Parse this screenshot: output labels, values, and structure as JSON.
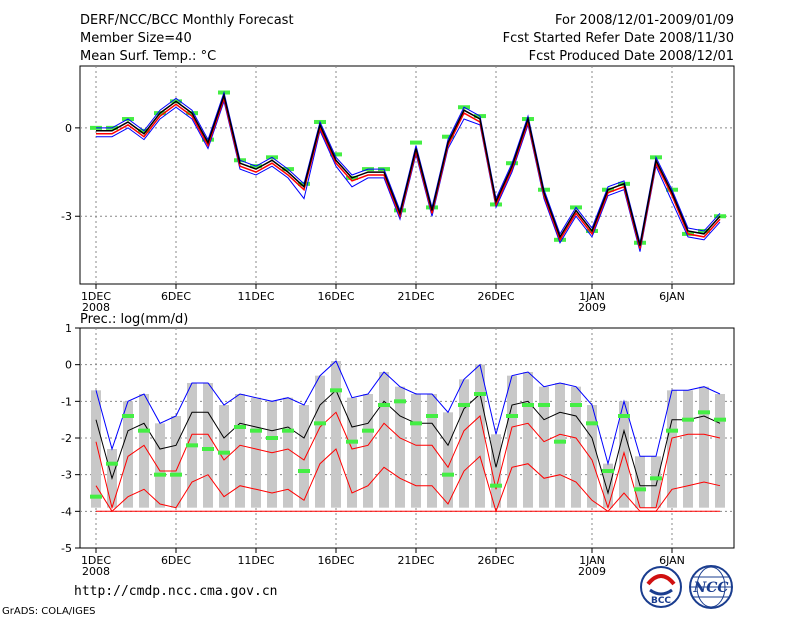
{
  "header": {
    "title": "DERF/NCC/BCC Monthly Forecast",
    "member_size": "Member Size=40",
    "variable": "Mean Surf. Temp.: °C",
    "period": "For 2008/12/01-2009/01/09",
    "start_date": "Fcst Started Refer Date 2008/11/30",
    "produced_date": "Fcst Produced Date 2008/12/01"
  },
  "footer": {
    "url": "http://cmdp.ncc.cma.gov.cn",
    "credit": "GrADS: COLA/IGES",
    "logo_bcc": "BCC",
    "logo_ncc": "NCC"
  },
  "colors": {
    "max_line": "#0000ff",
    "mean_line": "#000000",
    "percentile_line": "#ff0000",
    "observed": "#44ee44",
    "spread_box": "#c8c8c8",
    "grid": "#888888"
  },
  "chart_data": [
    {
      "type": "line",
      "title": "Mean Surf. Temp.: °C",
      "xlabel": "",
      "ylabel": "°C",
      "ylim": [
        -5.3,
        2.1
      ],
      "yticks": [
        0,
        -3
      ],
      "grid": true,
      "xtick_labels": [
        {
          "day": 1,
          "label": "1DEC",
          "sub": "2008"
        },
        {
          "day": 6,
          "label": "6DEC",
          "sub": ""
        },
        {
          "day": 11,
          "label": "11DEC",
          "sub": ""
        },
        {
          "day": 16,
          "label": "16DEC",
          "sub": ""
        },
        {
          "day": 21,
          "label": "21DEC",
          "sub": ""
        },
        {
          "day": 26,
          "label": "26DEC",
          "sub": ""
        },
        {
          "day": 32,
          "label": "1JAN",
          "sub": "2009"
        },
        {
          "day": 37,
          "label": "6JAN",
          "sub": ""
        }
      ],
      "x": [
        1,
        2,
        3,
        4,
        5,
        6,
        7,
        8,
        9,
        10,
        11,
        12,
        13,
        14,
        15,
        16,
        17,
        18,
        19,
        20,
        21,
        22,
        23,
        24,
        25,
        26,
        27,
        28,
        29,
        30,
        31,
        32,
        33,
        34,
        35,
        36,
        37,
        38,
        39,
        40
      ],
      "series": [
        {
          "name": "upper",
          "values": [
            0.0,
            0.0,
            0.3,
            -0.1,
            0.6,
            1.0,
            0.6,
            -0.4,
            1.2,
            -1.1,
            -1.3,
            -1.0,
            -1.4,
            -1.9,
            0.2,
            -1.0,
            -1.6,
            -1.4,
            -1.4,
            -2.8,
            -0.6,
            -2.7,
            -0.4,
            0.7,
            0.4,
            -2.4,
            -1.2,
            0.4,
            -2.1,
            -3.6,
            -2.7,
            -3.4,
            -2.0,
            -1.8,
            -3.9,
            -1.0,
            -2.1,
            -3.4,
            -3.5,
            -2.9
          ]
        },
        {
          "name": "mean",
          "values": [
            -0.1,
            -0.1,
            0.2,
            -0.2,
            0.5,
            0.9,
            0.5,
            -0.5,
            1.1,
            -1.2,
            -1.4,
            -1.1,
            -1.5,
            -2.0,
            0.1,
            -1.1,
            -1.7,
            -1.5,
            -1.5,
            -2.9,
            -0.7,
            -2.8,
            -0.5,
            0.6,
            0.3,
            -2.5,
            -1.3,
            0.3,
            -2.2,
            -3.7,
            -2.8,
            -3.5,
            -2.1,
            -1.9,
            -4.0,
            -1.1,
            -2.2,
            -3.5,
            -3.6,
            -3.0
          ]
        },
        {
          "name": "lower",
          "values": [
            -0.2,
            -0.2,
            0.1,
            -0.3,
            0.4,
            0.8,
            0.4,
            -0.6,
            1.0,
            -1.3,
            -1.5,
            -1.2,
            -1.6,
            -2.1,
            0.0,
            -1.2,
            -1.8,
            -1.6,
            -1.6,
            -3.0,
            -0.8,
            -2.9,
            -0.6,
            0.5,
            0.2,
            -2.6,
            -1.4,
            0.2,
            -2.3,
            -3.8,
            -2.9,
            -3.6,
            -2.2,
            -2.0,
            -4.1,
            -1.2,
            -2.3,
            -3.6,
            -3.7,
            -3.1
          ]
        },
        {
          "name": "min",
          "values": [
            -0.3,
            -0.3,
            0.0,
            -0.4,
            0.3,
            0.7,
            0.3,
            -0.7,
            0.9,
            -1.4,
            -1.6,
            -1.3,
            -1.7,
            -2.4,
            -0.1,
            -1.3,
            -2.0,
            -1.7,
            -1.7,
            -3.1,
            -0.9,
            -3.0,
            -0.7,
            0.3,
            0.1,
            -2.7,
            -1.5,
            0.1,
            -2.4,
            -3.9,
            -3.0,
            -3.7,
            -2.3,
            -2.1,
            -4.2,
            -1.3,
            -2.5,
            -3.7,
            -3.8,
            -3.2
          ]
        },
        {
          "name": "observed",
          "values": [
            0.0,
            0.0,
            0.3,
            -0.1,
            0.5,
            0.9,
            0.5,
            -0.4,
            1.2,
            -1.1,
            -1.3,
            -1.0,
            -1.4,
            -1.9,
            0.2,
            -0.9,
            -1.7,
            -1.4,
            -1.4,
            -2.8,
            -0.5,
            -2.7,
            -0.3,
            0.7,
            0.4,
            -2.6,
            -1.2,
            0.3,
            -2.1,
            -3.8,
            -2.7,
            -3.5,
            -2.1,
            -1.9,
            -3.9,
            -1.0,
            -2.1,
            -3.6,
            -3.5,
            -3.0
          ]
        }
      ]
    },
    {
      "type": "line",
      "title": "Prec.: log(mm/d)",
      "xlabel": "",
      "ylabel": "log(mm/d)",
      "ylim": [
        -5,
        1
      ],
      "yticks": [
        1,
        0,
        -1,
        -2,
        -3,
        -4,
        -5
      ],
      "grid": true,
      "xtick_labels": [
        {
          "day": 1,
          "label": "1DEC",
          "sub": "2008"
        },
        {
          "day": 6,
          "label": "6DEC",
          "sub": ""
        },
        {
          "day": 11,
          "label": "11DEC",
          "sub": ""
        },
        {
          "day": 16,
          "label": "16DEC",
          "sub": ""
        },
        {
          "day": 21,
          "label": "21DEC",
          "sub": ""
        },
        {
          "day": 26,
          "label": "26DEC",
          "sub": ""
        },
        {
          "day": 32,
          "label": "1JAN",
          "sub": "2009"
        },
        {
          "day": 37,
          "label": "6JAN",
          "sub": ""
        }
      ],
      "x": [
        1,
        2,
        3,
        4,
        5,
        6,
        7,
        8,
        9,
        10,
        11,
        12,
        13,
        14,
        15,
        16,
        17,
        18,
        19,
        20,
        21,
        22,
        23,
        24,
        25,
        26,
        27,
        28,
        29,
        30,
        31,
        32,
        33,
        34,
        35,
        36,
        37,
        38,
        39,
        40
      ],
      "series": [
        {
          "name": "max",
          "values": [
            -0.7,
            -2.3,
            -1.0,
            -0.8,
            -1.6,
            -1.4,
            -0.5,
            -0.5,
            -1.1,
            -0.8,
            -0.9,
            -1.0,
            -0.9,
            -1.1,
            -0.3,
            0.1,
            -0.9,
            -0.8,
            -0.2,
            -0.6,
            -0.8,
            -0.8,
            -1.3,
            -0.4,
            0.0,
            -1.9,
            -0.3,
            -0.2,
            -0.6,
            -0.5,
            -0.6,
            -1.1,
            -2.7,
            -1.0,
            -2.5,
            -2.5,
            -0.7,
            -0.7,
            -0.6,
            -0.8
          ]
        },
        {
          "name": "mean",
          "values": [
            -1.5,
            -3.1,
            -1.8,
            -1.6,
            -2.3,
            -2.2,
            -1.3,
            -1.3,
            -2.0,
            -1.6,
            -1.7,
            -1.8,
            -1.7,
            -2.0,
            -1.1,
            -0.7,
            -1.7,
            -1.6,
            -1.0,
            -1.4,
            -1.6,
            -1.6,
            -2.2,
            -1.2,
            -0.8,
            -2.8,
            -1.1,
            -1.0,
            -1.5,
            -1.3,
            -1.4,
            -2.0,
            -3.5,
            -1.8,
            -3.3,
            -3.3,
            -1.5,
            -1.5,
            -1.4,
            -1.6
          ]
        },
        {
          "name": "p25",
          "values": [
            -2.1,
            -3.9,
            -2.5,
            -2.2,
            -2.9,
            -2.9,
            -1.9,
            -1.9,
            -2.6,
            -2.2,
            -2.3,
            -2.4,
            -2.3,
            -2.6,
            -1.7,
            -1.3,
            -2.3,
            -2.2,
            -1.6,
            -2.0,
            -2.2,
            -2.2,
            -2.8,
            -1.8,
            -1.4,
            -3.4,
            -1.7,
            -1.6,
            -2.1,
            -1.9,
            -2.0,
            -2.6,
            -3.9,
            -2.4,
            -3.9,
            -3.9,
            -2.0,
            -1.9,
            -1.9,
            -2.0
          ]
        },
        {
          "name": "p10",
          "values": [
            -3.3,
            -4.0,
            -3.6,
            -3.4,
            -3.8,
            -3.9,
            -3.2,
            -3.0,
            -3.6,
            -3.3,
            -3.4,
            -3.5,
            -3.4,
            -3.7,
            -2.7,
            -2.3,
            -3.5,
            -3.3,
            -2.8,
            -3.1,
            -3.3,
            -3.3,
            -3.8,
            -2.9,
            -2.5,
            -4.0,
            -2.8,
            -2.7,
            -3.1,
            -3.0,
            -3.2,
            -3.7,
            -4.0,
            -3.5,
            -4.0,
            -4.0,
            -3.4,
            -3.3,
            -3.2,
            -3.3
          ]
        },
        {
          "name": "min",
          "values": [
            -4.0,
            -4.0,
            -4.0,
            -4.0,
            -4.0,
            -4.0,
            -4.0,
            -4.0,
            -4.0,
            -4.0,
            -4.0,
            -4.0,
            -4.0,
            -4.0,
            -4.0,
            -4.0,
            -4.0,
            -4.0,
            -4.0,
            -4.0,
            -4.0,
            -4.0,
            -4.0,
            -4.0,
            -4.0,
            -4.0,
            -4.0,
            -4.0,
            -4.0,
            -4.0,
            -4.0,
            -4.0,
            -4.0,
            -4.0,
            -4.0,
            -4.0,
            -4.0,
            -4.0,
            -4.0,
            -4.0
          ]
        },
        {
          "name": "observed",
          "values": [
            -3.6,
            -2.7,
            -1.4,
            -1.8,
            -3.0,
            -3.0,
            -2.2,
            -2.3,
            -2.4,
            -1.7,
            -1.8,
            -2.0,
            -1.8,
            -2.9,
            -1.6,
            -0.7,
            -2.1,
            -1.8,
            -1.1,
            -1.0,
            -1.6,
            -1.4,
            -3.0,
            -1.1,
            -0.8,
            -3.3,
            -1.4,
            -1.1,
            -1.1,
            -2.1,
            -1.1,
            -1.6,
            -2.9,
            -1.4,
            -3.4,
            -3.1,
            -1.8,
            -1.5,
            -1.3,
            -1.5
          ]
        }
      ]
    }
  ]
}
